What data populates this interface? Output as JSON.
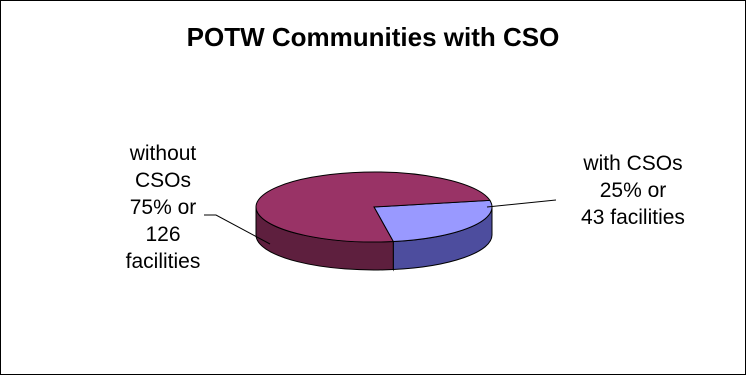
{
  "chart_data": {
    "type": "pie",
    "title": "POTW Communities with CSO",
    "style": "3d",
    "slices": [
      {
        "key": "without",
        "value": 126,
        "percent": 75,
        "color": "#993366",
        "side_color": "#5e1f3e",
        "label_lines": [
          "without",
          "CSOs",
          "75% or",
          "126",
          "facilities"
        ]
      },
      {
        "key": "with",
        "value": 43,
        "percent": 25,
        "color": "#9999ff",
        "side_color": "#4d4d9e",
        "label_lines": [
          "with CSOs",
          "25% or",
          "43 facilities"
        ]
      }
    ],
    "legend": "none"
  }
}
